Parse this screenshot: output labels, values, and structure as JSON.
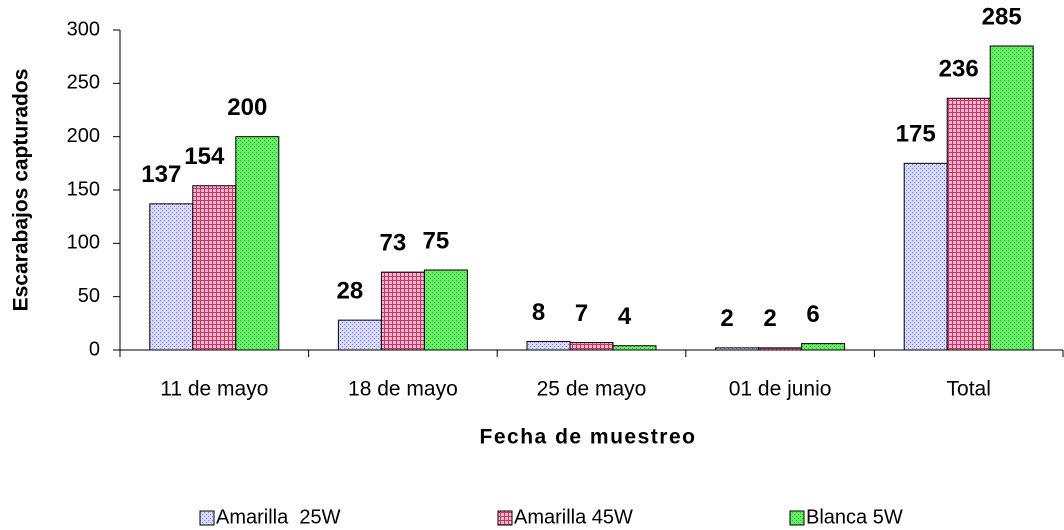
{
  "chart_data": {
    "type": "bar",
    "categories": [
      "11 de mayo",
      "18 de mayo",
      "25 de mayo",
      "01 de junio",
      "Total"
    ],
    "series": [
      {
        "name": "Amarilla  25W",
        "color": "#d8d8ff",
        "values": [
          137,
          28,
          8,
          2,
          175
        ]
      },
      {
        "name": "Amarilla 45W",
        "color": "#ffb0d0",
        "values": [
          154,
          73,
          7,
          2,
          236
        ]
      },
      {
        "name": "Blanca 5W",
        "color": "#66ee66",
        "values": [
          200,
          75,
          4,
          6,
          285
        ]
      }
    ],
    "xlabel": "Fecha de muestreo",
    "ylabel": "Escarabajos capturados",
    "ylim": [
      0,
      300
    ],
    "yticks": [
      0,
      50,
      100,
      150,
      200,
      250,
      300
    ],
    "grid": false,
    "legend": "bottom"
  }
}
